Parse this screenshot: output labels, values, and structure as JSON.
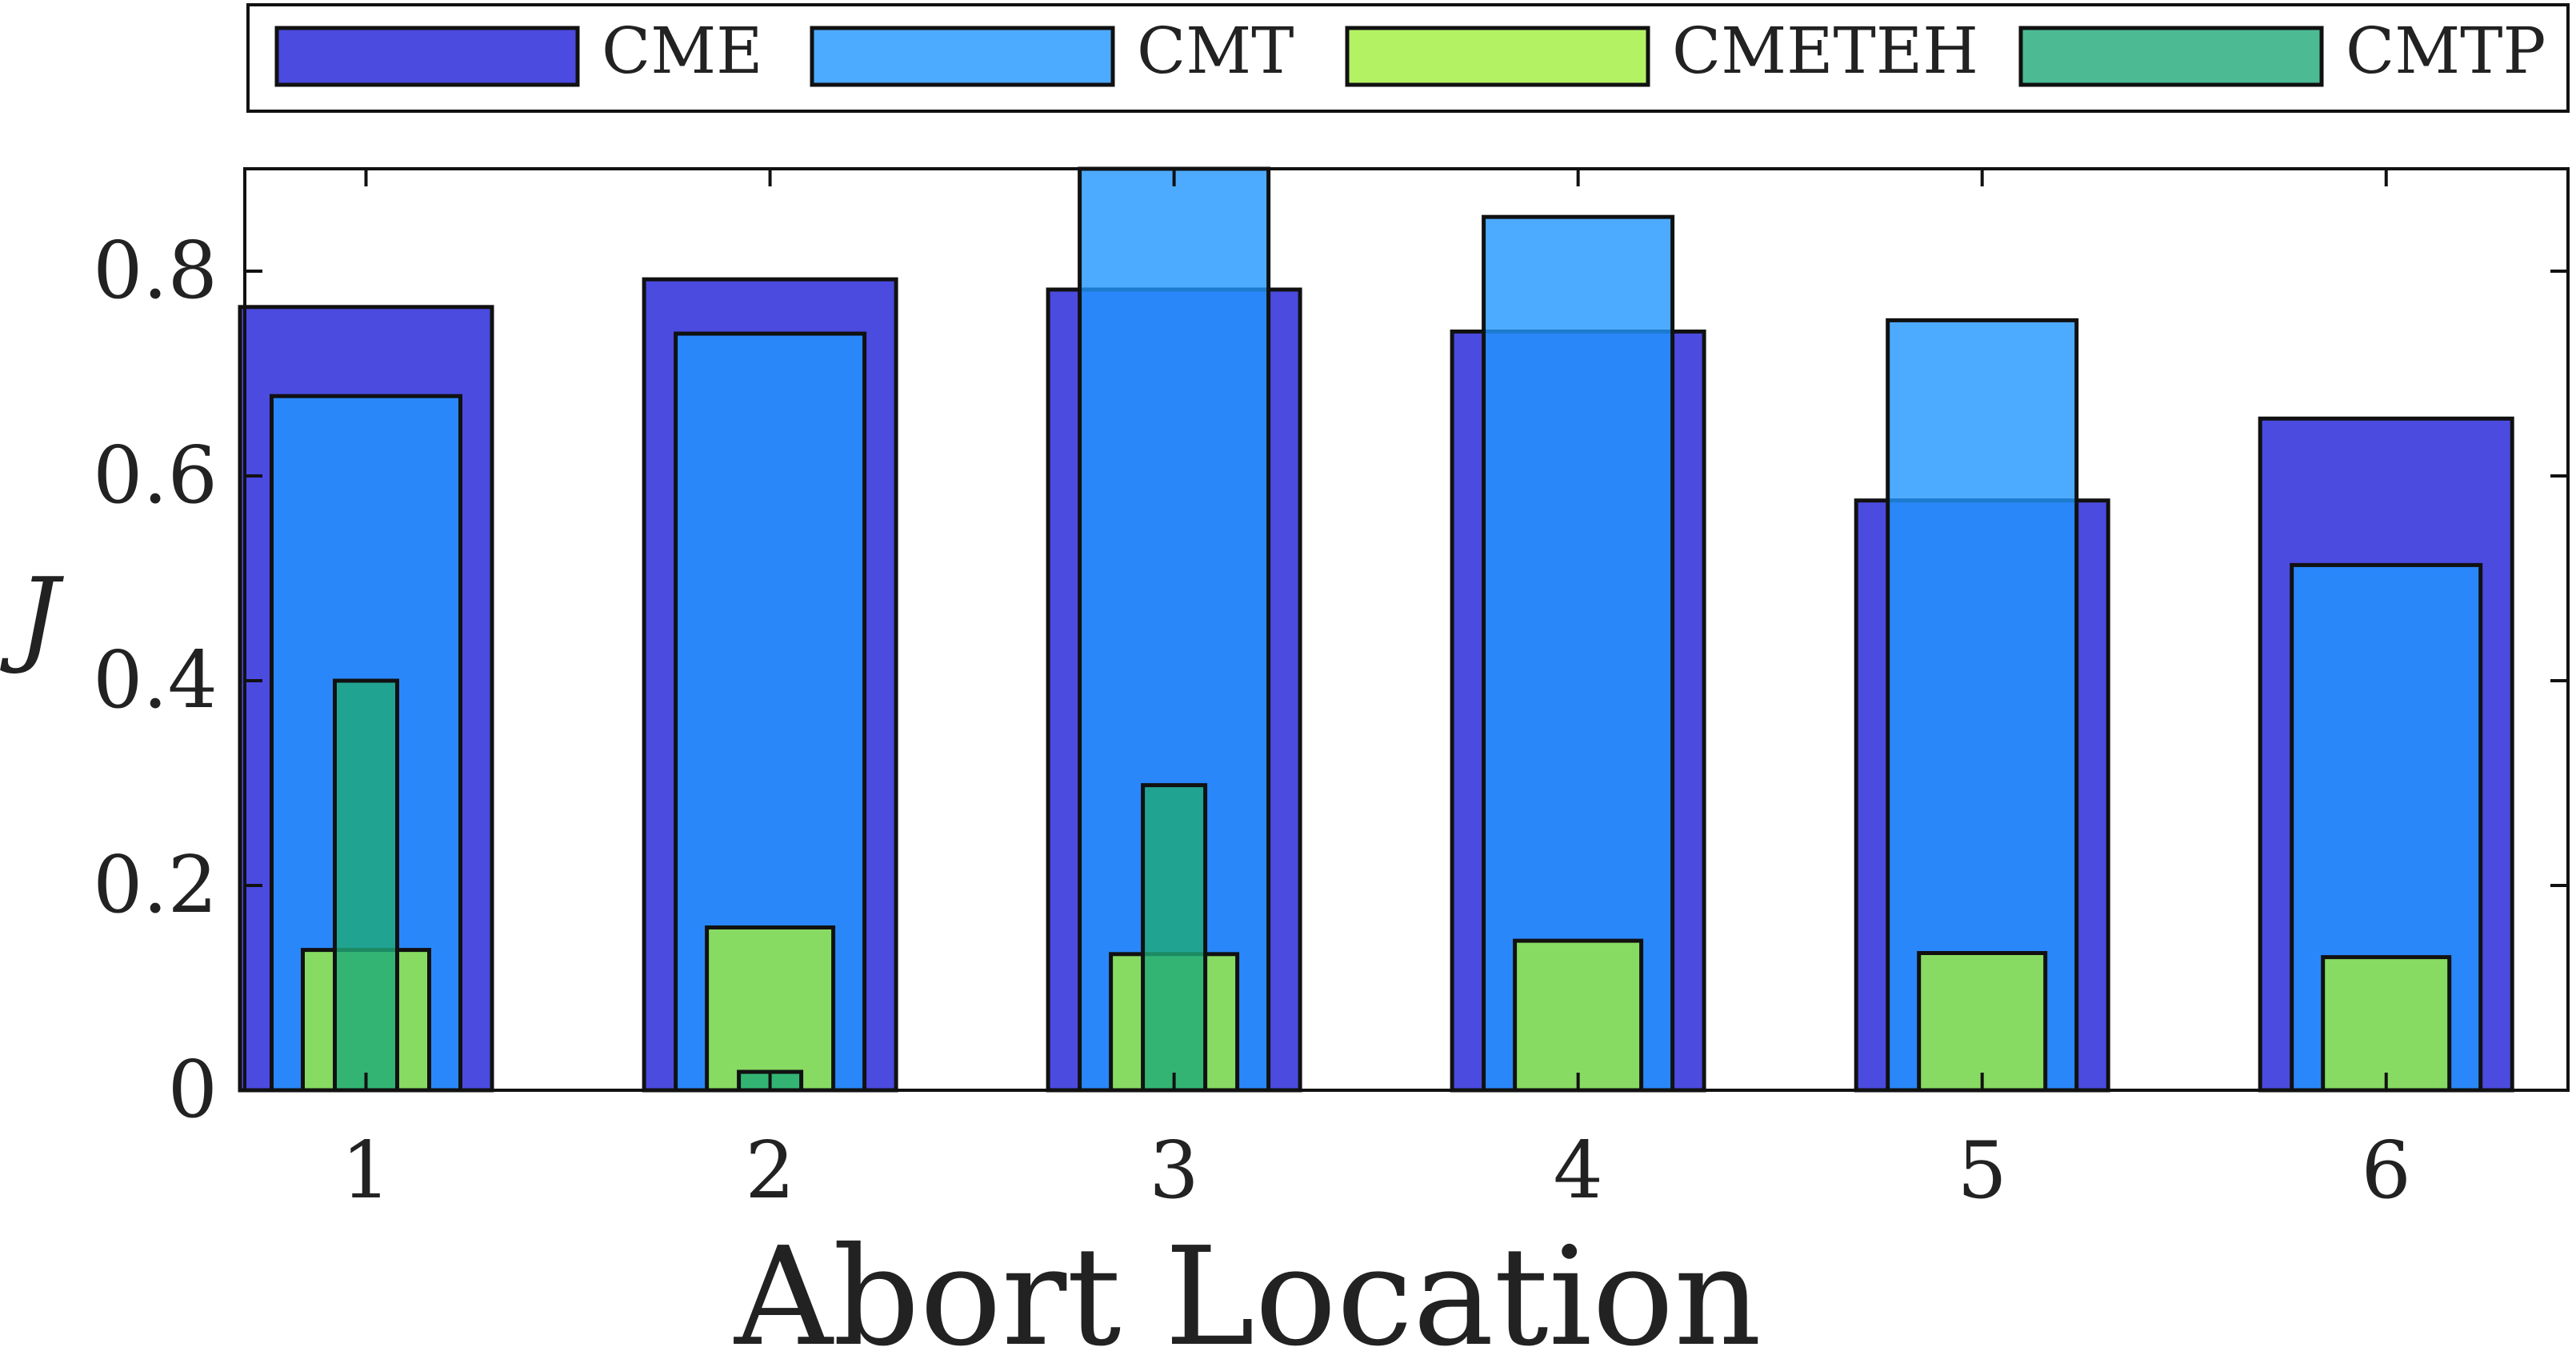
{
  "chart_data": {
    "type": "bar",
    "title": "",
    "xlabel": "Abort Location",
    "ylabel": "J",
    "categories": [
      "1",
      "2",
      "3",
      "4",
      "5",
      "6"
    ],
    "ylim": [
      0,
      0.9
    ],
    "yticks": [
      0,
      0.2,
      0.4,
      0.6,
      0.8
    ],
    "ytick_labels": [
      "0",
      "0.2",
      "0.4",
      "0.6",
      "0.8"
    ],
    "grid": false,
    "legend_position": "top, outside plot, horizontal",
    "overlay": true,
    "series": [
      {
        "name": "CME",
        "color": "#4B4BE0",
        "opacity": 1.0,
        "values": [
          0.765,
          0.792,
          0.782,
          0.741,
          0.576,
          0.656
        ]
      },
      {
        "name": "CMT",
        "color": "#2196FF",
        "opacity": 0.8,
        "values": [
          0.678,
          0.739,
          0.905,
          0.853,
          0.752,
          0.513
        ]
      },
      {
        "name": "CMETEH",
        "color": "#A0F03C",
        "opacity": 0.8,
        "values": [
          0.137,
          0.159,
          0.133,
          0.146,
          0.134,
          0.13
        ]
      },
      {
        "name": "CMTP",
        "color": "#1FAA78",
        "opacity": 0.8,
        "values": [
          0.4,
          0.018,
          0.298,
          0,
          0,
          0
        ]
      }
    ]
  }
}
